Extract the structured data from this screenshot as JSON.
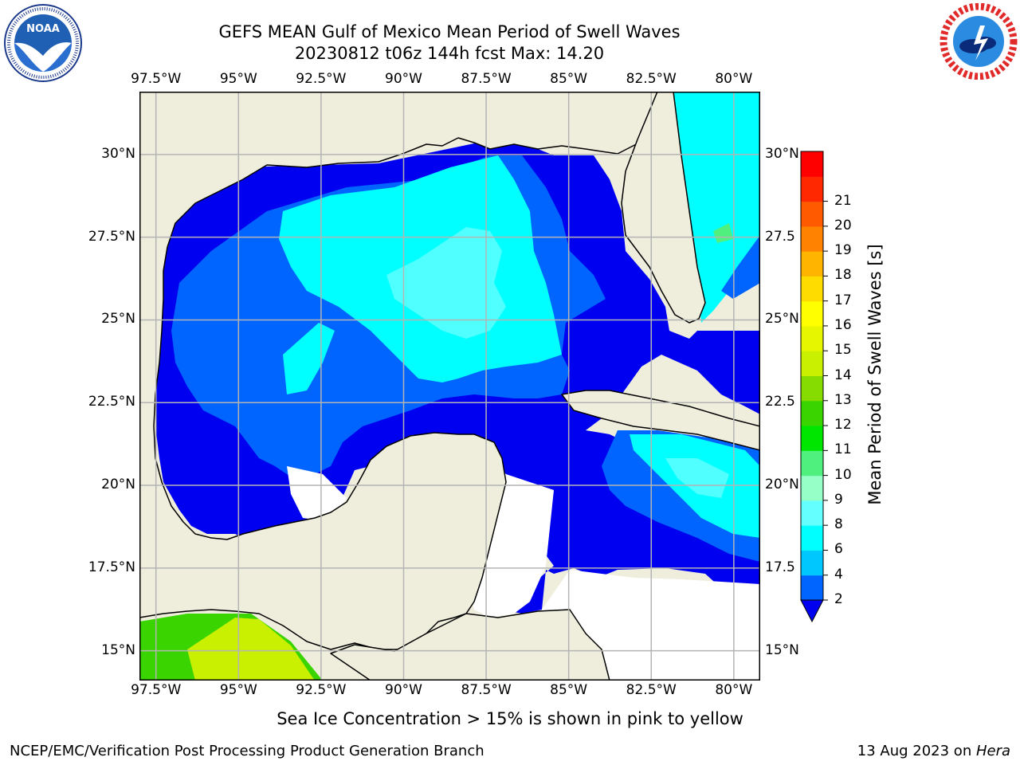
{
  "header": {
    "title_line1": "GEFS MEAN Gulf of Mexico Mean Period of Swell Waves",
    "title_line2": "20230812 t06z 144h fcst   Max: 14.20"
  },
  "logos": {
    "noaa_text": "NOAA",
    "noaa_ring": "NATIONAL OCEANIC AND ATMOSPHERIC ADMINISTRATION · U.S. DEPARTMENT OF COMMERCE",
    "nws_ring": "NATIONAL WEATHER SERVICE"
  },
  "map": {
    "lon_labels": [
      "97.5°W",
      "95°W",
      "92.5°W",
      "90°W",
      "87.5°W",
      "85°W",
      "82.5°W",
      "80°W"
    ],
    "lat_labels_left": [
      "30°N",
      "27.5°N",
      "25°N",
      "22.5°N",
      "20°N",
      "17.5°N",
      "15°N"
    ],
    "lat_labels_right": [
      "30°N",
      "27.5",
      "25°N",
      "22.5",
      "20°N",
      "17.5",
      "15°N"
    ],
    "extent": {
      "lon": [
        -98,
        -79.2
      ],
      "lat": [
        14.1,
        31.9
      ]
    },
    "colors": {
      "land": "#efeedd",
      "grid": "#b4b4b4"
    }
  },
  "colorbar": {
    "label": "Mean Period of Swell Waves [s]",
    "ticks": [
      "2",
      "4",
      "6",
      "8",
      "9",
      "10",
      "11",
      "12",
      "13",
      "14",
      "15",
      "16",
      "17",
      "18",
      "19",
      "20",
      "21"
    ],
    "colors": [
      "#0064ff",
      "#00c8ff",
      "#00ffff",
      "#64ffff",
      "#96ffc8",
      "#50f07e",
      "#00e600",
      "#3ad400",
      "#86dc00",
      "#c8f000",
      "#e6f500",
      "#ffff00",
      "#ffdc00",
      "#ffb400",
      "#ff8200",
      "#ff5a00",
      "#ff2800",
      "#ff0000"
    ],
    "under_color": "#0000f0"
  },
  "footer": {
    "ice_note": "Sea Ice Concentration > 15% is shown in pink to yellow",
    "left": "NCEP/EMC/Verification Post Processing Product Generation Branch",
    "right_prefix": "13 Aug 2023 on ",
    "right_host": "Hera"
  }
}
